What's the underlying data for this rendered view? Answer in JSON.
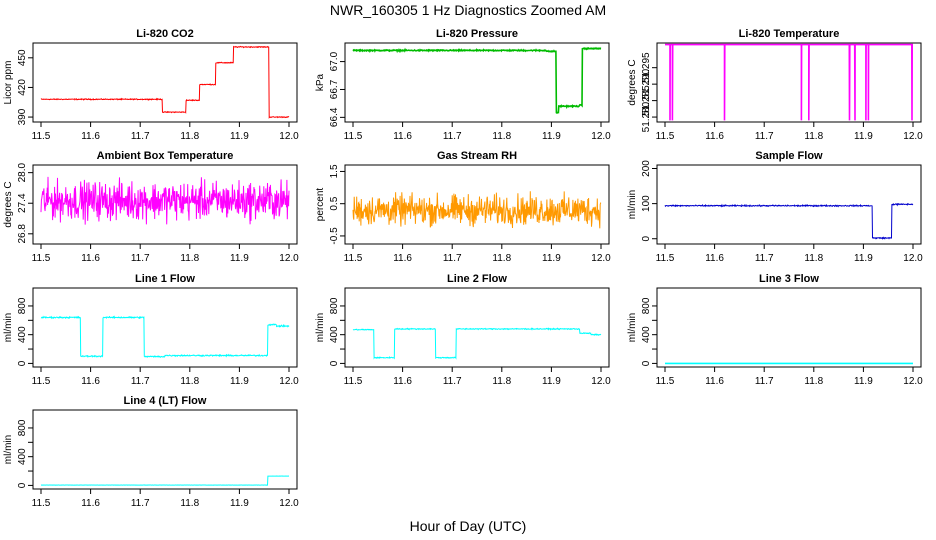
{
  "figure": {
    "title": "NWR_160305  1 Hz Diagnostics Zoomed AM",
    "xlabel": "Hour of Day (UTC)"
  },
  "chart_data": [
    {
      "type": "line",
      "title": "Li-820 CO2",
      "ylabel": "Licor ppm",
      "color": "#ff0000",
      "xlim": [
        11.5,
        12.0
      ],
      "ylim": [
        385,
        465
      ],
      "xticks": [
        "11.5",
        "11.6",
        "11.7",
        "11.8",
        "11.9",
        "12.0"
      ],
      "yticks": [
        390,
        420,
        450
      ],
      "ytick_labels": [
        "390",
        "420",
        "450"
      ],
      "steps": [
        [
          11.5,
          11.745,
          408
        ],
        [
          11.745,
          11.792,
          395
        ],
        [
          11.792,
          11.82,
          407
        ],
        [
          11.82,
          11.852,
          423
        ],
        [
          11.852,
          11.888,
          445
        ],
        [
          11.888,
          11.96,
          461
        ],
        [
          11.96,
          11.98,
          390
        ],
        [
          11.98,
          12.0,
          390
        ]
      ],
      "noise": 0.4
    },
    {
      "type": "line",
      "title": "Li-820 Pressure",
      "ylabel": "kPa",
      "color": "#00bb00",
      "xlim": [
        11.5,
        12.0
      ],
      "ylim": [
        66.35,
        67.2
      ],
      "xticks": [
        "11.5",
        "11.6",
        "11.7",
        "11.8",
        "11.9",
        "12.0"
      ],
      "yticks": [
        66.4,
        66.7,
        67.0
      ],
      "ytick_labels": [
        "66.4",
        "66.7",
        "67.0"
      ],
      "steps": [
        [
          11.5,
          11.89,
          67.12
        ],
        [
          11.89,
          11.91,
          67.11
        ],
        [
          11.91,
          11.915,
          66.45
        ],
        [
          11.915,
          11.956,
          66.52
        ],
        [
          11.956,
          11.962,
          66.53
        ],
        [
          11.962,
          12.0,
          67.14
        ]
      ],
      "noise": 0.005
    },
    {
      "type": "line",
      "title": "Li-820 Temperature",
      "ylabel": "degrees C",
      "color": "#ff00ff",
      "xlim": [
        11.5,
        12.0
      ],
      "ylim": [
        51.2785,
        51.3025
      ],
      "xticks": [
        "11.5",
        "11.6",
        "11.7",
        "11.8",
        "11.9",
        "12.0"
      ],
      "yticks": [
        51.28,
        51.285,
        51.29,
        51.295
      ],
      "ytick_labels": [
        "51.280",
        "51.285",
        "51.290",
        "51.295"
      ],
      "base": 51.302,
      "spikes": [
        11.51,
        11.515,
        11.62,
        11.775,
        11.79,
        11.872,
        11.883,
        11.905,
        11.91,
        11.998
      ],
      "spike_low": 51.279,
      "noise": 0
    },
    {
      "type": "line",
      "title": "Ambient Box Temperature",
      "ylabel": "degrees C",
      "color": "#ff00ff",
      "xlim": [
        11.5,
        12.0
      ],
      "ylim": [
        26.6,
        28.15
      ],
      "xticks": [
        "11.5",
        "11.6",
        "11.7",
        "11.8",
        "11.9",
        "12.0"
      ],
      "yticks": [
        26.8,
        27.4,
        28.0
      ],
      "ytick_labels": [
        "26.8",
        "27.4",
        "28.0"
      ],
      "mean": 27.45,
      "noise": 0.32
    },
    {
      "type": "line",
      "title": "Gas Stream RH",
      "ylabel": "percent",
      "color": "#ff9900",
      "xlim": [
        11.5,
        12.0
      ],
      "ylim": [
        -0.75,
        1.7
      ],
      "xticks": [
        "11.5",
        "11.6",
        "11.7",
        "11.8",
        "11.9",
        "12.0"
      ],
      "yticks": [
        -0.5,
        0.5,
        1.5
      ],
      "ytick_labels": [
        "-0.5",
        "0.5",
        "1.5"
      ],
      "mean": 0.3,
      "noise": 0.4
    },
    {
      "type": "line",
      "title": "Sample Flow",
      "ylabel": "ml/min",
      "color": "#0000cc",
      "xlim": [
        11.5,
        12.0
      ],
      "ylim": [
        -15,
        210
      ],
      "xticks": [
        "11.5",
        "11.6",
        "11.7",
        "11.8",
        "11.9",
        "12.0"
      ],
      "yticks": [
        0,
        100,
        200
      ],
      "ytick_labels": [
        "0",
        "100",
        "200"
      ],
      "steps": [
        [
          11.5,
          11.918,
          94
        ],
        [
          11.918,
          11.957,
          2
        ],
        [
          11.957,
          12.0,
          98
        ]
      ],
      "noise": 1.5
    },
    {
      "type": "line",
      "title": "Line 1 Flow",
      "ylabel": "ml/min",
      "color": "#00ffff",
      "xlim": [
        11.5,
        12.0
      ],
      "ylim": [
        -50,
        1050
      ],
      "xticks": [
        "11.5",
        "11.6",
        "11.7",
        "11.8",
        "11.9",
        "12.0"
      ],
      "yticks": [
        0,
        200,
        400,
        600,
        800
      ],
      "ytick_labels": [
        "0",
        "400",
        "800"
      ],
      "tick_every_other_label": true,
      "steps": [
        [
          11.5,
          11.58,
          640
        ],
        [
          11.58,
          11.625,
          100
        ],
        [
          11.625,
          11.708,
          640
        ],
        [
          11.708,
          11.75,
          95
        ],
        [
          11.75,
          11.957,
          110
        ],
        [
          11.957,
          11.975,
          540
        ],
        [
          11.975,
          12.0,
          520
        ]
      ],
      "noise": 8
    },
    {
      "type": "line",
      "title": "Line 2 Flow",
      "ylabel": "ml/min",
      "color": "#00ffff",
      "xlim": [
        11.5,
        12.0
      ],
      "ylim": [
        -50,
        1050
      ],
      "xticks": [
        "11.5",
        "11.6",
        "11.7",
        "11.8",
        "11.9",
        "12.0"
      ],
      "yticks": [
        0,
        200,
        400,
        600,
        800
      ],
      "ytick_labels": [
        "0",
        "400",
        "800"
      ],
      "tick_every_other_label": true,
      "steps": [
        [
          11.5,
          11.542,
          470
        ],
        [
          11.542,
          11.584,
          80
        ],
        [
          11.584,
          11.666,
          480
        ],
        [
          11.666,
          11.708,
          80
        ],
        [
          11.708,
          11.957,
          480
        ],
        [
          11.957,
          11.98,
          420
        ],
        [
          11.98,
          12.0,
          400
        ]
      ],
      "noise": 6
    },
    {
      "type": "line",
      "title": "Line 3 Flow",
      "ylabel": "ml/min",
      "color": "#00ffff",
      "xlim": [
        11.5,
        12.0
      ],
      "ylim": [
        -50,
        1050
      ],
      "xticks": [
        "11.5",
        "11.6",
        "11.7",
        "11.8",
        "11.9",
        "12.0"
      ],
      "yticks": [
        0,
        200,
        400,
        600,
        800
      ],
      "ytick_labels": [
        "0",
        "400",
        "800"
      ],
      "tick_every_other_label": true,
      "steps": [
        [
          11.5,
          12.0,
          0
        ]
      ],
      "noise": 0
    },
    {
      "type": "line",
      "title": "Line 4 (LT) Flow",
      "ylabel": "ml/min",
      "color": "#00ffff",
      "xlim": [
        11.5,
        12.0
      ],
      "ylim": [
        -50,
        1050
      ],
      "xticks": [
        "11.5",
        "11.6",
        "11.7",
        "11.8",
        "11.9",
        "12.0"
      ],
      "yticks": [
        0,
        200,
        400,
        600,
        800
      ],
      "ytick_labels": [
        "0",
        "400",
        "800"
      ],
      "tick_every_other_label": true,
      "steps": [
        [
          11.5,
          11.957,
          5
        ],
        [
          11.957,
          12.0,
          130
        ]
      ],
      "noise": 1
    }
  ]
}
